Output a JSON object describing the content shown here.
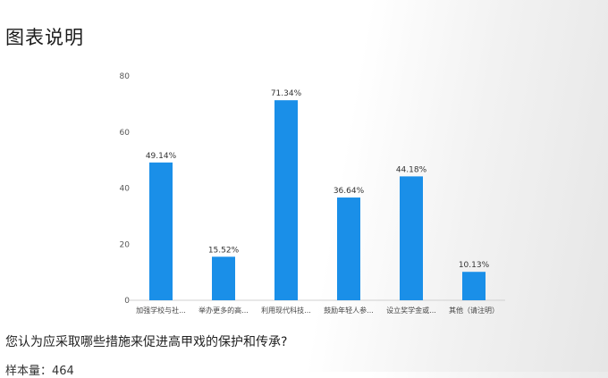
{
  "header": {
    "title": "图表说明"
  },
  "chart_data": {
    "type": "bar",
    "categories": [
      "加强学校与社...",
      "举办更多的高...",
      "利用现代科技...",
      "鼓励年轻人参...",
      "设立奖学金或...",
      "其他（请注明）"
    ],
    "values": [
      49.14,
      15.52,
      71.34,
      36.64,
      44.18,
      10.13
    ],
    "value_labels": [
      "49.14%",
      "15.52%",
      "71.34%",
      "36.64%",
      "44.18%",
      "10.13%"
    ],
    "yticks": [
      "0",
      "20",
      "40",
      "60",
      "80"
    ],
    "ylim": [
      0,
      80
    ],
    "grid": false,
    "bar_color": "#1a8fe8"
  },
  "footer": {
    "question": "您认为应采取哪些措施来促进高甲戏的保护和传承?",
    "sample": "样本量：464"
  }
}
